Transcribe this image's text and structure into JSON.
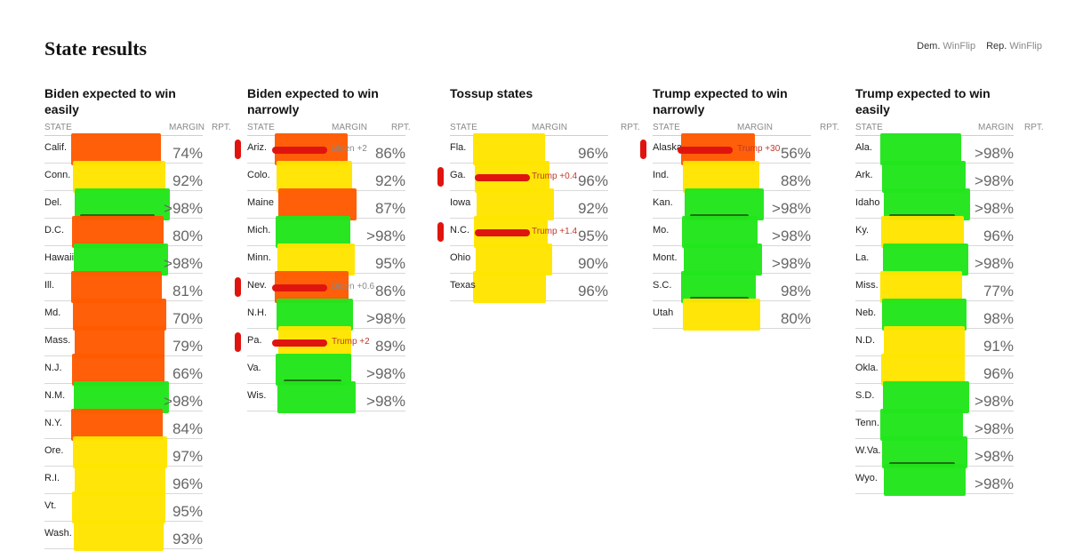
{
  "page": {
    "title": "State results"
  },
  "legend": {
    "dem_label": "Dem.",
    "dem_win": "WinFlip",
    "rep_label": "Rep.",
    "rep_win": "WinFlip"
  },
  "columns": {
    "state": "STATE",
    "margin": "MARGIN",
    "rpt": "RPT."
  },
  "colors": {
    "orange": "#ff5a00",
    "green": "#22e51c",
    "yellow": "#ffe500",
    "red_mark": "#e0140e"
  },
  "groups": [
    {
      "title": "Biden expected to win easily",
      "rows": [
        {
          "state": "Calif.",
          "rpt": "74%",
          "hl": "orange"
        },
        {
          "state": "Conn.",
          "rpt": "92%",
          "hl": "yellow"
        },
        {
          "state": "Del.",
          "rpt": ">98%",
          "hl": "green"
        },
        {
          "state": "D.C.",
          "rpt": "80%",
          "hl": "orange"
        },
        {
          "state": "Hawaii",
          "rpt": ">98%",
          "hl": "green"
        },
        {
          "state": "Ill.",
          "rpt": "81%",
          "hl": "orange"
        },
        {
          "state": "Md.",
          "rpt": "70%",
          "hl": "orange"
        },
        {
          "state": "Mass.",
          "rpt": "79%",
          "hl": "orange"
        },
        {
          "state": "N.J.",
          "rpt": "66%",
          "hl": "orange"
        },
        {
          "state": "N.M.",
          "rpt": ">98%",
          "hl": "green"
        },
        {
          "state": "N.Y.",
          "rpt": "84%",
          "hl": "orange"
        },
        {
          "state": "Ore.",
          "rpt": "97%",
          "hl": "yellow"
        },
        {
          "state": "R.I.",
          "rpt": "96%",
          "hl": "yellow"
        },
        {
          "state": "Vt.",
          "rpt": "95%",
          "hl": "yellow"
        },
        {
          "state": "Wash.",
          "rpt": "93%",
          "hl": "yellow"
        }
      ]
    },
    {
      "title": "Biden expected to win narrowly",
      "rows": [
        {
          "state": "Ariz.",
          "margin": "Biden +2",
          "party": "biden",
          "rpt": "86%",
          "hl": "orange",
          "mark": true
        },
        {
          "state": "Colo.",
          "rpt": "92%",
          "hl": "yellow"
        },
        {
          "state": "Maine",
          "rpt": "87%",
          "hl": "orange"
        },
        {
          "state": "Mich.",
          "rpt": ">98%",
          "hl": "green"
        },
        {
          "state": "Minn.",
          "rpt": "95%",
          "hl": "yellow"
        },
        {
          "state": "Nev.",
          "margin": "Biden +0.6",
          "party": "biden",
          "rpt": "86%",
          "hl": "orange",
          "mark": true
        },
        {
          "state": "N.H.",
          "rpt": ">98%",
          "hl": "green"
        },
        {
          "state": "Pa.",
          "margin": "Trump +2",
          "party": "trump",
          "rpt": "89%",
          "hl": "yellow",
          "mark": true
        },
        {
          "state": "Va.",
          "rpt": ">98%",
          "hl": "green"
        },
        {
          "state": "Wis.",
          "rpt": ">98%",
          "hl": "green"
        }
      ]
    },
    {
      "title": "Tossup states",
      "rows": [
        {
          "state": "Fla.",
          "rpt": "96%",
          "hl": "yellow"
        },
        {
          "state": "Ga.",
          "margin": "Trump +0.4",
          "party": "trump",
          "rpt": "96%",
          "hl": "yellow",
          "mark": true
        },
        {
          "state": "Iowa",
          "rpt": "92%",
          "hl": "yellow"
        },
        {
          "state": "N.C.",
          "margin": "Trump +1.4",
          "party": "trump",
          "rpt": "95%",
          "hl": "yellow",
          "mark": true
        },
        {
          "state": "Ohio",
          "rpt": "90%",
          "hl": "yellow"
        },
        {
          "state": "Texas",
          "rpt": "96%",
          "hl": "yellow"
        }
      ]
    },
    {
      "title": "Trump expected to win narrowly",
      "rows": [
        {
          "state": "Alaska",
          "margin": "Trump +30",
          "party": "trump",
          "rpt": "56%",
          "hl": "orange",
          "mark": true
        },
        {
          "state": "Ind.",
          "rpt": "88%",
          "hl": "yellow"
        },
        {
          "state": "Kan.",
          "rpt": ">98%",
          "hl": "green"
        },
        {
          "state": "Mo.",
          "rpt": ">98%",
          "hl": "green"
        },
        {
          "state": "Mont.",
          "rpt": ">98%",
          "hl": "green"
        },
        {
          "state": "S.C.",
          "rpt": "98%",
          "hl": "green"
        },
        {
          "state": "Utah",
          "rpt": "80%",
          "hl": "yellow"
        }
      ]
    },
    {
      "title": "Trump expected to win easily",
      "rows": [
        {
          "state": "Ala.",
          "rpt": ">98%",
          "hl": "green"
        },
        {
          "state": "Ark.",
          "rpt": ">98%",
          "hl": "green"
        },
        {
          "state": "Idaho",
          "rpt": ">98%",
          "hl": "green"
        },
        {
          "state": "Ky.",
          "rpt": "96%",
          "hl": "yellow"
        },
        {
          "state": "La.",
          "rpt": ">98%",
          "hl": "green"
        },
        {
          "state": "Miss.",
          "rpt": "77%",
          "hl": "yellow"
        },
        {
          "state": "Neb.",
          "rpt": "98%",
          "hl": "green"
        },
        {
          "state": "N.D.",
          "rpt": "91%",
          "hl": "yellow"
        },
        {
          "state": "Okla.",
          "rpt": "96%",
          "hl": "yellow"
        },
        {
          "state": "S.D.",
          "rpt": ">98%",
          "hl": "green"
        },
        {
          "state": "Tenn.",
          "rpt": ">98%",
          "hl": "green"
        },
        {
          "state": "W.Va.",
          "rpt": ">98%",
          "hl": "green"
        },
        {
          "state": "Wyo.",
          "rpt": ">98%",
          "hl": "green"
        }
      ]
    }
  ]
}
